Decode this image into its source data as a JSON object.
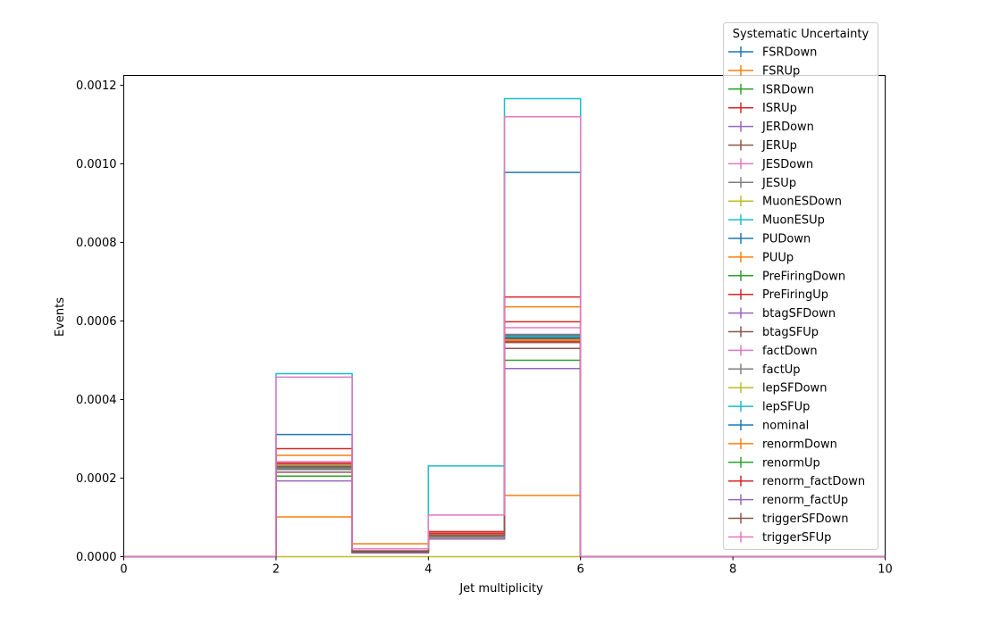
{
  "chart_data": {
    "type": "step",
    "title": "",
    "xlabel": "Jet multiplicity",
    "ylabel": "Events",
    "xlim": [
      0,
      10
    ],
    "ylim": [
      0,
      0.001225
    ],
    "x_ticks": [
      0,
      2,
      4,
      6,
      8,
      10
    ],
    "y_ticks": [
      0.0,
      0.0002,
      0.0004,
      0.0006,
      0.0008,
      0.001,
      0.0012
    ],
    "y_tick_labels": [
      "0.0000",
      "0.0002",
      "0.0004",
      "0.0006",
      "0.0008",
      "0.0010",
      "0.0012"
    ],
    "bin_edges": [
      0,
      1,
      2,
      3,
      4,
      5,
      6,
      7,
      8,
      9,
      10
    ],
    "legend": {
      "title": "Systematic Uncertainty",
      "placement": "top-right"
    },
    "series": [
      {
        "name": "FSRDown",
        "color": "#1f77b4",
        "values": [
          0,
          0,
          0.000232,
          1.3e-05,
          5.5e-05,
          0.000556,
          0,
          0,
          0,
          0
        ]
      },
      {
        "name": "FSRUp",
        "color": "#ff7f0e",
        "values": [
          0,
          0,
          0.000101,
          3.3e-05,
          4.6e-05,
          0.000156,
          0,
          0,
          0,
          0
        ]
      },
      {
        "name": "ISRDown",
        "color": "#2ca02c",
        "values": [
          0,
          0,
          0.000205,
          1e-05,
          5e-05,
          0.0005,
          0,
          0,
          0,
          0
        ]
      },
      {
        "name": "ISRUp",
        "color": "#d62728",
        "values": [
          0,
          0,
          0.000235,
          1.3e-05,
          5.7e-05,
          0.000598,
          0,
          0,
          0,
          0
        ]
      },
      {
        "name": "JERDown",
        "color": "#9467bd",
        "values": [
          0,
          0,
          0.000193,
          1e-05,
          4.5e-05,
          0.000479,
          0,
          0,
          0,
          0
        ]
      },
      {
        "name": "JERUp",
        "color": "#8c564b",
        "values": [
          0,
          0,
          0.000215,
          1.1e-05,
          5.2e-05,
          0.00053,
          0,
          0,
          0,
          0
        ]
      },
      {
        "name": "JESDown",
        "color": "#e377c2",
        "values": [
          0,
          0,
          0.000242,
          1.3e-05,
          5.8e-05,
          0.000583,
          0,
          0,
          0,
          0
        ]
      },
      {
        "name": "JESUp",
        "color": "#7f7f7f",
        "values": [
          0,
          0,
          0.000222,
          1.1e-05,
          5.3e-05,
          0.000545,
          0,
          0,
          0,
          0
        ]
      },
      {
        "name": "MuonESDown",
        "color": "#bcbd22",
        "values": [
          0,
          0,
          0,
          0,
          0,
          0,
          0,
          0,
          0,
          0
        ]
      },
      {
        "name": "MuonESUp",
        "color": "#17becf",
        "values": [
          0,
          0,
          0.000466,
          1.5e-05,
          0.000231,
          0.001166,
          0,
          0,
          0,
          0
        ]
      },
      {
        "name": "PUDown",
        "color": "#1f77b4",
        "values": [
          0,
          0,
          0.000311,
          1.2e-05,
          5.4e-05,
          0.000978,
          0,
          0,
          0,
          0
        ]
      },
      {
        "name": "PUUp",
        "color": "#ff7f0e",
        "values": [
          0,
          0,
          0.000258,
          1.3e-05,
          5.8e-05,
          0.000636,
          0,
          0,
          0,
          0
        ]
      },
      {
        "name": "PreFiringDown",
        "color": "#2ca02c",
        "values": [
          0,
          0,
          0.000228,
          1.2e-05,
          5.5e-05,
          0.000563,
          0,
          0,
          0,
          0
        ]
      },
      {
        "name": "PreFiringUp",
        "color": "#d62728",
        "values": [
          0,
          0,
          0.000275,
          1.4e-05,
          6.4e-05,
          0.000661,
          0,
          0,
          0,
          0
        ]
      },
      {
        "name": "btagSFDown",
        "color": "#9467bd",
        "values": [
          0,
          0,
          0.000225,
          1.2e-05,
          5.3e-05,
          0.000552,
          0,
          0,
          0,
          0
        ]
      },
      {
        "name": "btagSFUp",
        "color": "#8c564b",
        "values": [
          0,
          0,
          0.00023,
          1.2e-05,
          5.5e-05,
          0.00056,
          0,
          0,
          0,
          0
        ]
      },
      {
        "name": "factDown",
        "color": "#e377c2",
        "values": [
          0,
          0,
          0.000236,
          1.2e-05,
          5.7e-05,
          0.000556,
          0,
          0,
          0,
          0
        ]
      },
      {
        "name": "factUp",
        "color": "#7f7f7f",
        "values": [
          0,
          0,
          0.000226,
          1.2e-05,
          5.4e-05,
          0.00055,
          0,
          0,
          0,
          0
        ]
      },
      {
        "name": "lepSFDown",
        "color": "#bcbd22",
        "values": [
          0,
          0,
          0.000227,
          1.2e-05,
          5.4e-05,
          0.000553,
          0,
          0,
          0,
          0
        ]
      },
      {
        "name": "lepSFUp",
        "color": "#17becf",
        "values": [
          0,
          0,
          0.000231,
          1.2e-05,
          5.6e-05,
          0.000561,
          0,
          0,
          0,
          0
        ]
      },
      {
        "name": "nominal",
        "color": "#1f77b4",
        "values": [
          0,
          0,
          0.000229,
          1.2e-05,
          5.5e-05,
          0.000557,
          0,
          0,
          0,
          0
        ]
      },
      {
        "name": "renormDown",
        "color": "#ff7f0e",
        "values": [
          0,
          0,
          0.000234,
          1.2e-05,
          5.7e-05,
          0.000549,
          0,
          0,
          0,
          0
        ]
      },
      {
        "name": "renormUp",
        "color": "#2ca02c",
        "values": [
          0,
          0,
          0.000224,
          1.2e-05,
          5.4e-05,
          0.000564,
          0,
          0,
          0,
          0
        ]
      },
      {
        "name": "renorm_factDown",
        "color": "#d62728",
        "values": [
          0,
          0,
          0.000238,
          1.3e-05,
          6e-05,
          0.000547,
          0,
          0,
          0,
          0
        ]
      },
      {
        "name": "renorm_factUp",
        "color": "#9467bd",
        "values": [
          0,
          0,
          0.000222,
          1.1e-05,
          5.2e-05,
          0.000566,
          0,
          0,
          0,
          0
        ]
      },
      {
        "name": "triggerSFDown",
        "color": "#8c564b",
        "values": [
          0,
          0,
          0.000228,
          1.2e-05,
          5.5e-05,
          0.000555,
          0,
          0,
          0,
          0
        ]
      },
      {
        "name": "triggerSFUp",
        "color": "#e377c2",
        "values": [
          0,
          0,
          0.000457,
          2e-05,
          0.000106,
          0.00112,
          0,
          0,
          0,
          0
        ]
      }
    ]
  }
}
